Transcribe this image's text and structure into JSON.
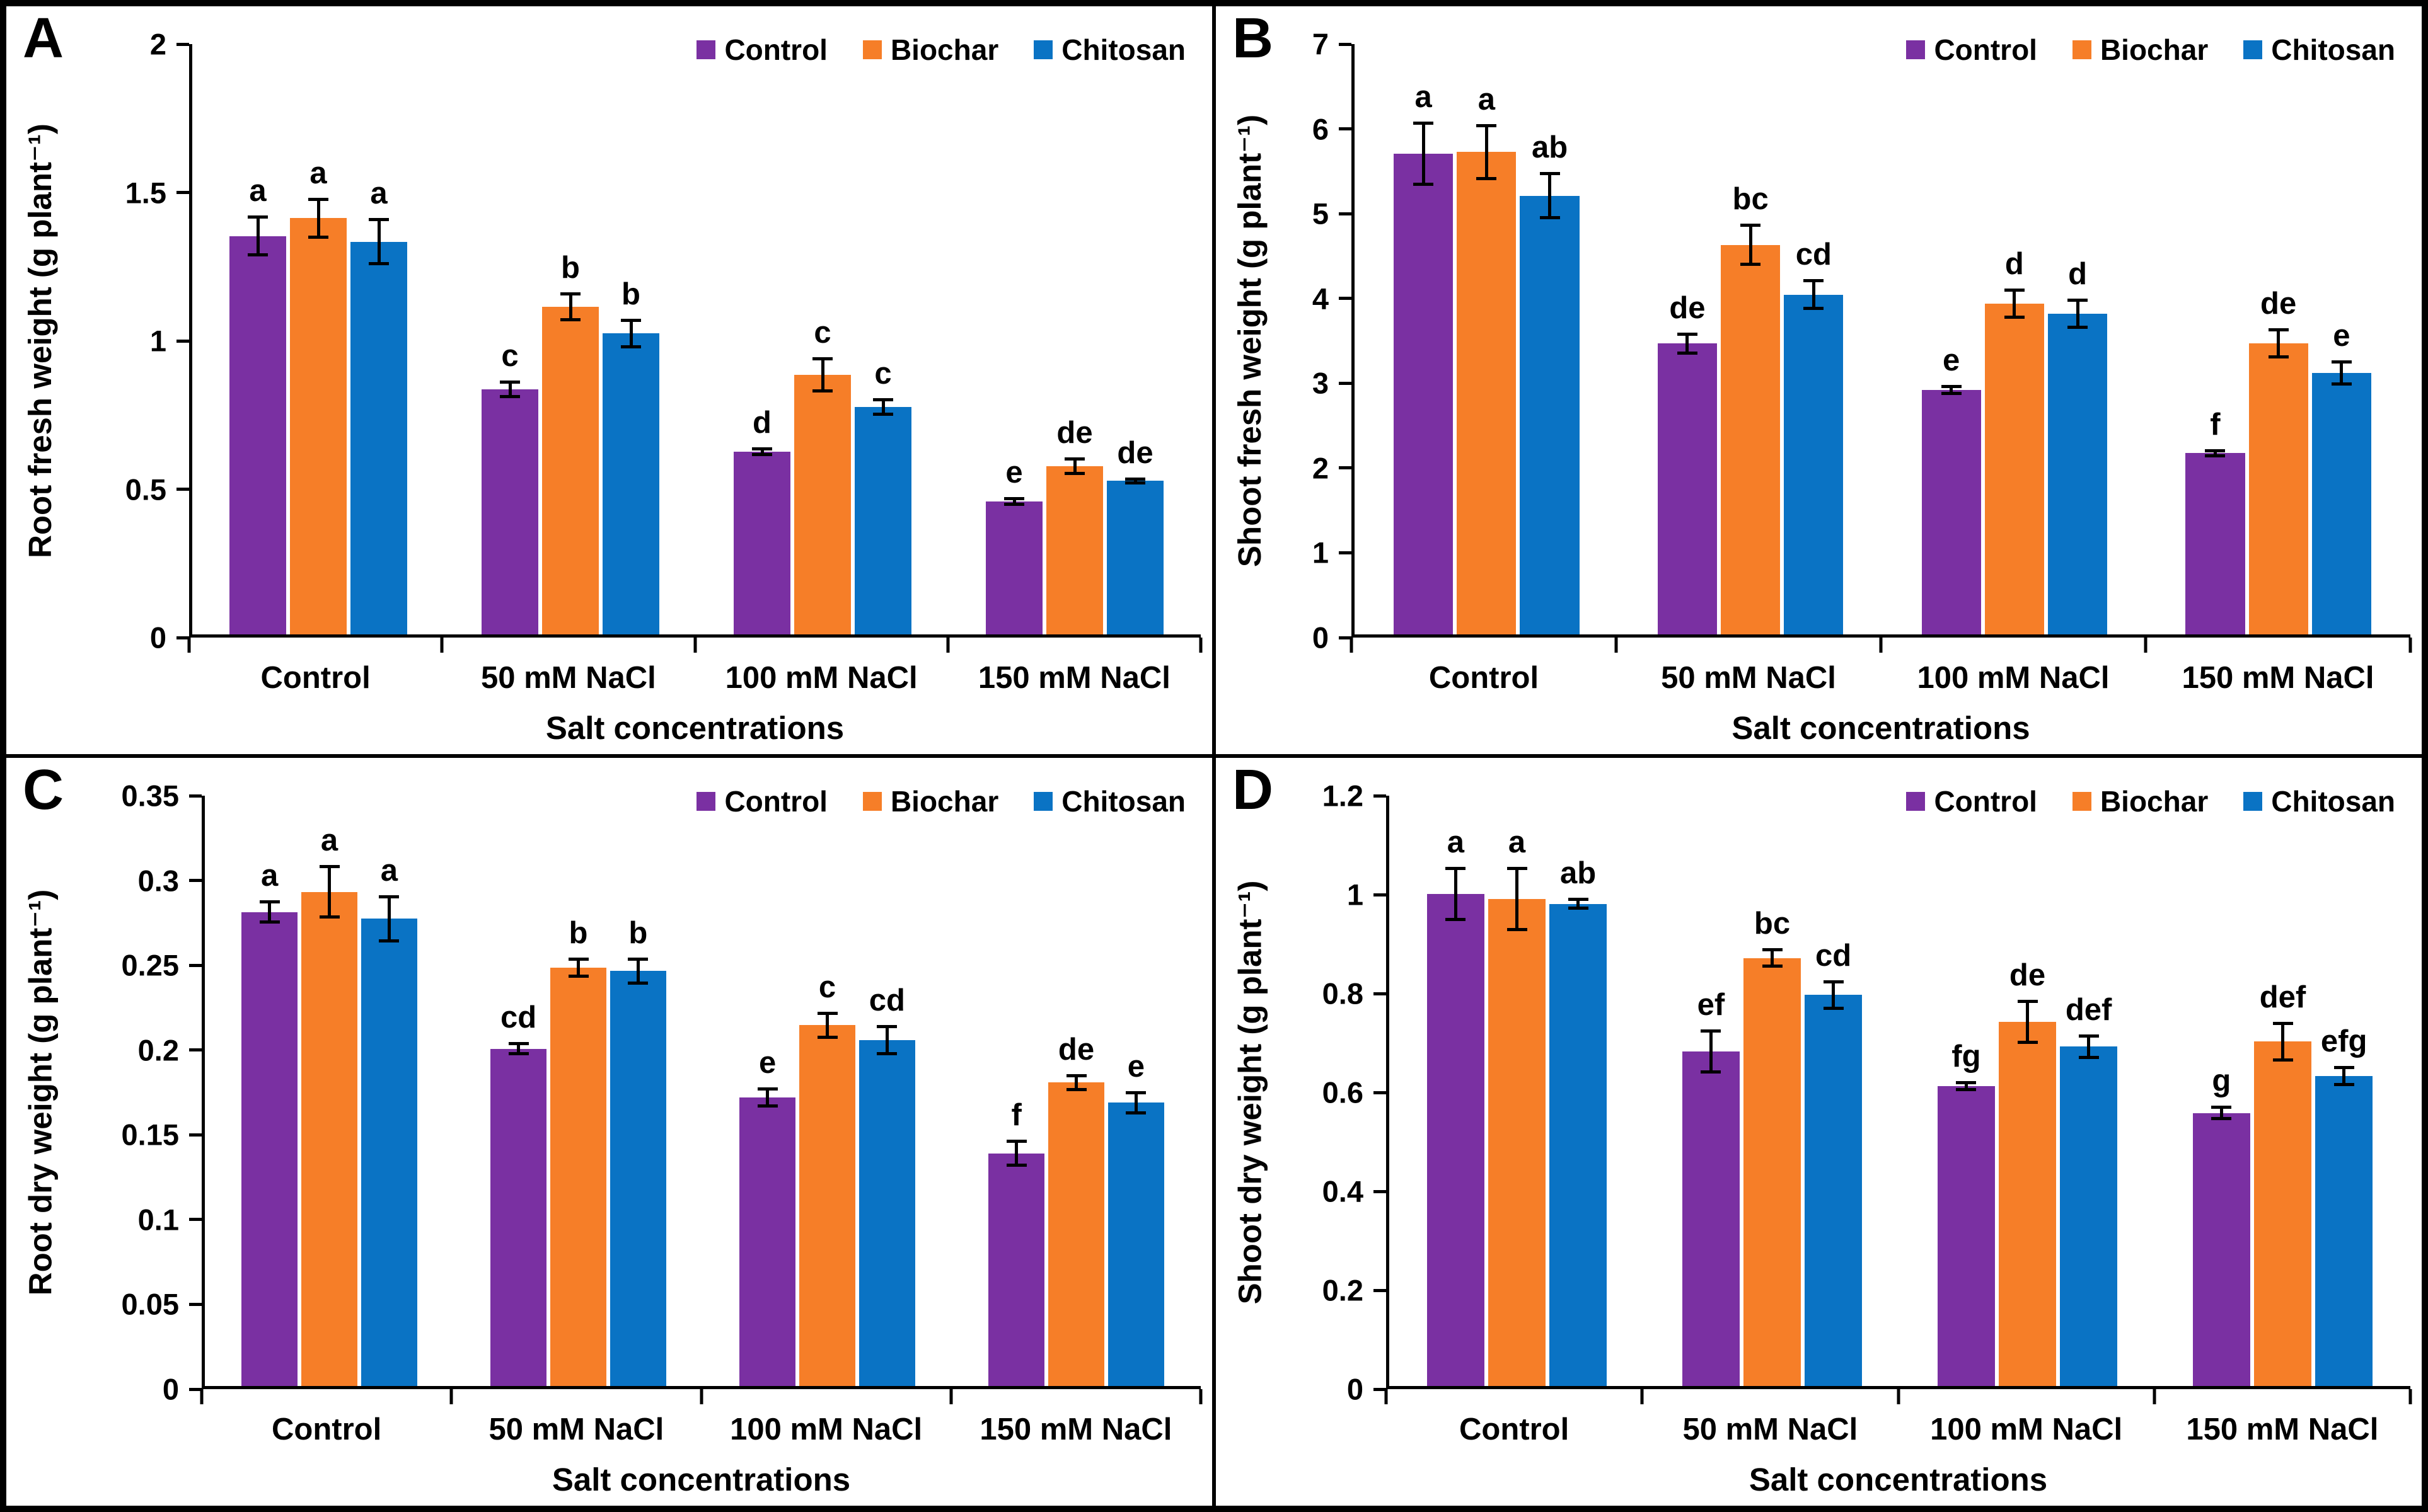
{
  "chart_data": {
    "type": "bar",
    "layout_hint": "2x2 grid of clustered bar charts with error bars and significance letters; legend top-right inside each panel; no gridlines",
    "x_title": "Salt concentrations",
    "categories": [
      "Control",
      "50 mM NaCl",
      "100 mM NaCl",
      "150 mM NaCl"
    ],
    "legend": [
      "Control",
      "Biochar",
      "Chitosan"
    ],
    "legend_position": "top-right",
    "colors": {
      "series": [
        "#7A30A2",
        "#F67E28",
        "#0A73C4"
      ],
      "axis": "#000000",
      "background": "#FFFFFF",
      "border": "#000000"
    },
    "panels": [
      {
        "label": "A",
        "y_label": "Root fresh weight (g plant⁻¹)",
        "y_max": 2,
        "ylim": [
          0,
          2
        ],
        "y_ticks": [
          "0",
          "0.5",
          "1",
          "1.5",
          "2"
        ],
        "series": [
          {
            "name": "Control",
            "values": [
              1.35,
              0.83,
              0.62,
              0.45
            ],
            "errors": [
              0.07,
              0.03,
              0.015,
              0.015
            ],
            "letters": [
              "a",
              "c",
              "d",
              "e"
            ]
          },
          {
            "name": "Biochar",
            "values": [
              1.41,
              1.11,
              0.88,
              0.57
            ],
            "errors": [
              0.07,
              0.05,
              0.06,
              0.03
            ],
            "letters": [
              "a",
              "b",
              "c",
              "de"
            ]
          },
          {
            "name": "Chitosan",
            "values": [
              1.33,
              1.02,
              0.77,
              0.52
            ],
            "errors": [
              0.08,
              0.05,
              0.03,
              0.012
            ],
            "letters": [
              "a",
              "b",
              "c",
              "de"
            ]
          }
        ]
      },
      {
        "label": "B",
        "y_label": "Shoot fresh weight (g plant⁻¹)",
        "y_max": 7,
        "ylim": [
          0,
          7
        ],
        "y_ticks": [
          "0",
          "1",
          "2",
          "3",
          "4",
          "5",
          "6",
          "7"
        ],
        "series": [
          {
            "name": "Control",
            "values": [
              5.7,
              3.45,
              2.9,
              2.15
            ],
            "errors": [
              0.38,
              0.13,
              0.06,
              0.05
            ],
            "letters": [
              "a",
              "de",
              "e",
              "f"
            ]
          },
          {
            "name": "Biochar",
            "values": [
              5.72,
              4.62,
              3.92,
              3.45
            ],
            "errors": [
              0.33,
              0.25,
              0.18,
              0.18
            ],
            "letters": [
              "a",
              "bc",
              "d",
              "de"
            ]
          },
          {
            "name": "Chitosan",
            "values": [
              5.2,
              4.03,
              3.8,
              3.1
            ],
            "errors": [
              0.28,
              0.18,
              0.18,
              0.15
            ],
            "letters": [
              "ab",
              "cd",
              "d",
              "e"
            ]
          }
        ]
      },
      {
        "label": "C",
        "y_label": "Root dry weight (g plant⁻¹)",
        "y_max": 0.35,
        "ylim": [
          0,
          0.35
        ],
        "y_ticks": [
          "0",
          "0.05",
          "0.1",
          "0.15",
          "0.2",
          "0.25",
          "0.3",
          "0.35"
        ],
        "series": [
          {
            "name": "Control",
            "values": [
              0.281,
              0.2,
              0.171,
              0.138
            ],
            "errors": [
              0.007,
              0.004,
              0.006,
              0.008
            ],
            "letters": [
              "a",
              "cd",
              "e",
              "f"
            ]
          },
          {
            "name": "Biochar",
            "values": [
              0.293,
              0.248,
              0.214,
              0.18
            ],
            "errors": [
              0.016,
              0.006,
              0.008,
              0.005
            ],
            "letters": [
              "a",
              "b",
              "c",
              "de"
            ]
          },
          {
            "name": "Chitosan",
            "values": [
              0.277,
              0.246,
              0.205,
              0.168
            ],
            "errors": [
              0.014,
              0.008,
              0.009,
              0.007
            ],
            "letters": [
              "a",
              "b",
              "cd",
              "e"
            ]
          }
        ]
      },
      {
        "label": "D",
        "y_label": "Shoot dry weight (g plant⁻¹)",
        "y_max": 1.2,
        "ylim": [
          0,
          1.2
        ],
        "y_ticks": [
          "0",
          "0.2",
          "0.4",
          "0.6",
          "0.8",
          "1",
          "1.2"
        ],
        "series": [
          {
            "name": "Control",
            "values": [
              1.0,
              0.68,
              0.61,
              0.555
            ],
            "errors": [
              0.055,
              0.045,
              0.01,
              0.015
            ],
            "letters": [
              "a",
              "ef",
              "fg",
              "g"
            ]
          },
          {
            "name": "Biochar",
            "values": [
              0.99,
              0.87,
              0.74,
              0.7
            ],
            "errors": [
              0.065,
              0.02,
              0.045,
              0.04
            ],
            "letters": [
              "a",
              "bc",
              "de",
              "def"
            ]
          },
          {
            "name": "Chitosan",
            "values": [
              0.98,
              0.795,
              0.69,
              0.63
            ],
            "errors": [
              0.012,
              0.03,
              0.025,
              0.02
            ],
            "letters": [
              "ab",
              "cd",
              "def",
              "efg"
            ]
          }
        ]
      }
    ]
  }
}
